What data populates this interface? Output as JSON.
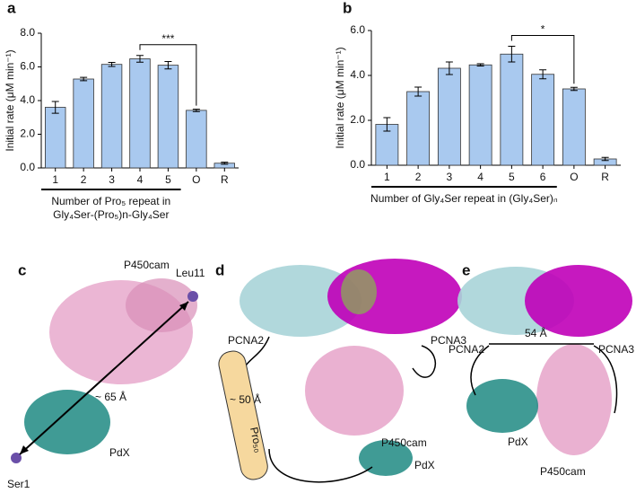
{
  "chart_data": [
    {
      "type": "bar",
      "panel": "a",
      "ylabel": "Initial rate (μM min⁻¹)",
      "xlabel": [
        "Number of Pro₅ repeat in",
        "Gly₄Ser-(Pro₅)n-Gly₄Ser"
      ],
      "categories": [
        "1",
        "2",
        "3",
        "4",
        "5",
        "O",
        "R"
      ],
      "values": [
        3.6,
        5.28,
        6.15,
        6.48,
        6.1,
        3.42,
        0.28
      ],
      "errors": [
        0.35,
        0.1,
        0.12,
        0.2,
        0.22,
        0.07,
        0.06
      ],
      "color": "#a9c9ef",
      "ylim": [
        0,
        8
      ],
      "yticks": [
        {
          "value": 0,
          "label": "0.0"
        },
        {
          "value": 2,
          "label": "2.0"
        },
        {
          "value": 4,
          "label": "4.0"
        },
        {
          "value": 6,
          "label": "6.0"
        },
        {
          "value": 8,
          "label": "8.0"
        }
      ],
      "significance": {
        "label": "***",
        "between": [
          "4",
          "O"
        ]
      }
    },
    {
      "type": "bar",
      "panel": "b",
      "ylabel": "Initial rate (μM min⁻¹)",
      "xlabel": [
        "Number of Gly₄Ser repeat in (Gly₄Ser)ₙ"
      ],
      "categories": [
        "1",
        "2",
        "3",
        "4",
        "5",
        "6",
        "O",
        "R"
      ],
      "values": [
        1.82,
        3.28,
        4.32,
        4.47,
        4.95,
        4.05,
        3.4,
        0.28
      ],
      "errors": [
        0.3,
        0.2,
        0.28,
        0.05,
        0.35,
        0.2,
        0.07,
        0.07
      ],
      "color": "#a9c9ef",
      "ylim": [
        0,
        6
      ],
      "yticks": [
        {
          "value": 0,
          "label": "0.0"
        },
        {
          "value": 2,
          "label": "2.0"
        },
        {
          "value": 4,
          "label": "4.0"
        },
        {
          "value": 6,
          "label": "6.0"
        }
      ],
      "significance": {
        "label": "*",
        "between": [
          "5",
          "O"
        ]
      }
    }
  ],
  "structures": [
    {
      "panel": "c",
      "labels": [
        "P450cam",
        "Leu11",
        "~ 65 Å",
        "PdX",
        "Ser1"
      ]
    },
    {
      "panel": "d",
      "labels": [
        "PCNA2",
        "PCNA3",
        "~ 50 Å",
        "Pro₅₀",
        "P450cam",
        "PdX"
      ]
    },
    {
      "panel": "e",
      "labels": [
        "PCNA2",
        "54 Å",
        "PCNA3",
        "PdX",
        "P450cam"
      ]
    }
  ]
}
